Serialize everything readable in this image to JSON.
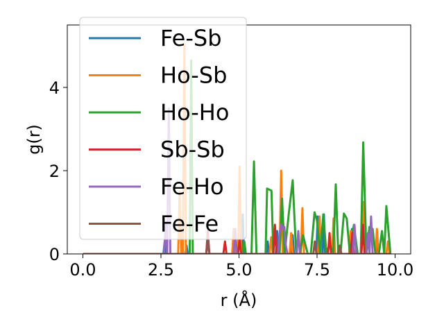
{
  "chart_data": {
    "type": "line",
    "xlabel": "r (Å)",
    "ylabel": "g(r)",
    "xlim": [
      -0.5,
      10.5
    ],
    "ylim": [
      0,
      5.5
    ],
    "xticks": [
      0.0,
      2.5,
      5.0,
      7.5,
      10.0
    ],
    "xtick_labels": [
      "0.0",
      "2.5",
      "5.0",
      "7.5",
      "10.0"
    ],
    "yticks": [
      0,
      2,
      4
    ],
    "ytick_labels": [
      "0",
      "2",
      "4"
    ],
    "grid": false,
    "legend_position": "upper-left",
    "series": [
      {
        "name": "Fe-Sb",
        "color": "#1f77b4",
        "x": [
          0,
          2.58,
          2.62,
          2.66,
          3.28,
          3.32,
          3.36,
          5.08,
          5.12,
          5.16,
          5.88,
          5.92,
          5.96,
          6.18,
          6.22,
          6.26,
          6.68,
          6.72,
          6.76,
          7.48,
          7.52,
          7.56,
          7.68,
          7.72,
          7.76,
          8.58,
          8.62,
          8.66,
          9.38,
          9.42,
          9.46,
          9.88
        ],
        "y": [
          0,
          0,
          0.3,
          0,
          0,
          0.2,
          0,
          0,
          0.95,
          0,
          0,
          0.3,
          0,
          0,
          0.55,
          0,
          0,
          0.45,
          0,
          0,
          0.9,
          0,
          0,
          0.95,
          0,
          0,
          0.6,
          0,
          0,
          0.45,
          0,
          0
        ]
      },
      {
        "name": "Ho-Sb",
        "color": "#ff7f0e",
        "x": [
          0,
          3.05,
          3.1,
          3.15,
          3.2,
          3.25,
          3.3,
          3.35,
          4.78,
          4.83,
          4.88,
          4.97,
          5.02,
          5.07,
          5.98,
          6.03,
          6.08,
          6.3,
          6.35,
          6.4,
          6.62,
          6.67,
          6.72,
          6.98,
          7.03,
          7.08,
          7.53,
          7.58,
          7.63,
          7.98,
          8.03,
          8.08,
          8.53,
          8.58,
          8.63,
          8.92,
          8.97,
          9.02,
          9.37,
          9.42,
          9.47,
          9.72,
          9.77,
          9.82,
          9.86
        ],
        "y": [
          0,
          0,
          1.5,
          0,
          0,
          5.05,
          0,
          0,
          0,
          0.6,
          0,
          0,
          2.1,
          0,
          0,
          0.4,
          0,
          0,
          2.0,
          0,
          0,
          0.5,
          0,
          0,
          1.1,
          0,
          0,
          0.9,
          0,
          0,
          0.85,
          0,
          0,
          0.55,
          0,
          0,
          1.25,
          0,
          0,
          0.6,
          0,
          0,
          0.3,
          0,
          0
        ]
      },
      {
        "name": "Ho-Ho",
        "color": "#2ca02c",
        "x": [
          0,
          3.42,
          3.47,
          3.52,
          5.12,
          5.17,
          5.22,
          5.4,
          5.48,
          5.56,
          5.85,
          5.9,
          6.04,
          6.1,
          6.3,
          6.38,
          6.46,
          6.6,
          6.72,
          6.83,
          6.95,
          7.05,
          7.2,
          7.3,
          7.42,
          7.5,
          7.6,
          7.7,
          7.8,
          7.9,
          8.02,
          8.1,
          8.18,
          8.25,
          8.36,
          8.45,
          8.55,
          8.68,
          8.8,
          8.9,
          8.98,
          9.08,
          9.18,
          9.28,
          9.37,
          9.48,
          9.58,
          9.65,
          9.72,
          9.85
        ],
        "y": [
          0,
          0,
          4.65,
          0,
          0,
          0.3,
          0,
          0,
          2.22,
          0,
          0,
          1.57,
          1.52,
          0,
          0,
          1.33,
          0,
          1.0,
          1.77,
          0,
          0,
          0.45,
          0,
          0,
          1.0,
          0.8,
          0,
          0.95,
          0,
          0.25,
          0,
          1.67,
          0,
          0,
          0.97,
          0.85,
          0,
          0.7,
          0,
          0,
          2.68,
          0,
          0.65,
          0.6,
          0,
          0,
          0.55,
          0,
          1.15,
          0
        ]
      },
      {
        "name": "Sb-Sb",
        "color": "#d62728",
        "x": [
          0,
          3.95,
          4.0,
          4.05,
          4.5,
          4.55,
          4.6,
          4.97,
          5.02,
          5.07,
          6.1,
          6.15,
          6.2,
          7.85,
          7.9,
          7.95,
          8.58,
          8.63,
          8.68,
          8.92,
          8.97,
          9.02,
          9.86
        ],
        "y": [
          0,
          0,
          0.55,
          0,
          0,
          0.3,
          0,
          0,
          0.35,
          0,
          0,
          0.7,
          0,
          0,
          0.5,
          0,
          0,
          0.5,
          0,
          0,
          0.7,
          0,
          0
        ]
      },
      {
        "name": "Fe-Ho",
        "color": "#9467bd",
        "x": [
          0,
          2.6,
          2.65,
          2.7,
          2.75,
          2.8,
          3.95,
          4.0,
          4.05,
          4.83,
          4.88,
          4.93,
          6.25,
          6.3,
          6.35,
          6.4,
          6.45,
          6.5,
          6.55,
          6.85,
          6.9,
          6.95,
          8.65,
          8.7,
          8.75,
          9.08,
          9.13,
          9.18,
          9.23,
          9.28,
          9.33,
          9.86
        ],
        "y": [
          0,
          0,
          0.7,
          0,
          3.5,
          0,
          0,
          0.4,
          0,
          0,
          0.6,
          0,
          0,
          0.5,
          0.7,
          0.6,
          0.65,
          0.2,
          0,
          0,
          0.55,
          0,
          0,
          0.7,
          0,
          0,
          0.5,
          0,
          0.9,
          0,
          0,
          0
        ]
      },
      {
        "name": "Fe-Fe",
        "color": "#8c564b",
        "x": [
          0,
          3.95,
          4.0,
          4.05,
          7.38,
          7.43,
          7.48,
          8.18,
          8.23,
          8.28,
          9.86
        ],
        "y": [
          0,
          0,
          0.35,
          0,
          0,
          0.3,
          0,
          0,
          0.2,
          0,
          0
        ]
      }
    ]
  }
}
